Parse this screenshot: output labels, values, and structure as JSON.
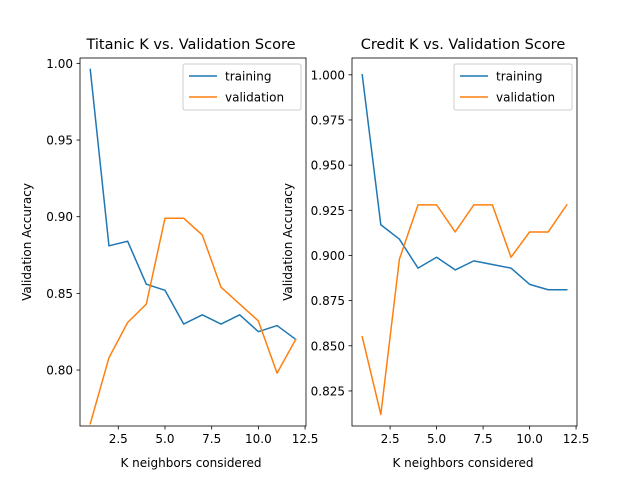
{
  "chart_data": [
    {
      "type": "line",
      "title": "Titanic K vs. Validation Score",
      "xlabel": "K neighbors considered",
      "ylabel": "Validation Accuracy",
      "xlim": [
        0.45,
        12.55
      ],
      "ylim": [
        0.7635,
        1.0035
      ],
      "xticks": [
        2.5,
        5.0,
        7.5,
        10.0,
        12.5
      ],
      "xtick_labels": [
        "2.5",
        "5.0",
        "7.5",
        "10.0",
        "12.5"
      ],
      "yticks": [
        0.8,
        0.85,
        0.9,
        0.95,
        1.0
      ],
      "ytick_labels": [
        "0.80",
        "0.85",
        "0.90",
        "0.95",
        "1.00"
      ],
      "legend_position": "top-right",
      "grid": false,
      "x": [
        1,
        2,
        3,
        4,
        5,
        6,
        7,
        8,
        9,
        10,
        11,
        12
      ],
      "series": [
        {
          "name": "training",
          "color": "#1f77b4",
          "values": [
            0.996,
            0.881,
            0.884,
            0.856,
            0.852,
            0.83,
            0.836,
            0.83,
            0.836,
            0.825,
            0.829,
            0.82
          ]
        },
        {
          "name": "validation",
          "color": "#ff7f0e",
          "values": [
            0.765,
            0.808,
            0.831,
            0.843,
            0.899,
            0.899,
            0.888,
            0.854,
            0.843,
            0.832,
            0.798,
            0.82
          ]
        }
      ]
    },
    {
      "type": "line",
      "title": "Credit K vs. Validation Score",
      "xlabel": "K neighbors considered",
      "ylabel": "Validation Accuracy",
      "xlim": [
        0.45,
        12.55
      ],
      "ylim": [
        0.8056,
        1.0093
      ],
      "xticks": [
        2.5,
        5.0,
        7.5,
        10.0,
        12.5
      ],
      "xtick_labels": [
        "2.5",
        "5.0",
        "7.5",
        "10.0",
        "12.5"
      ],
      "yticks": [
        0.825,
        0.85,
        0.875,
        0.9,
        0.925,
        0.95,
        0.975,
        1.0
      ],
      "ytick_labels": [
        "0.825",
        "0.850",
        "0.875",
        "0.900",
        "0.925",
        "0.950",
        "0.975",
        "1.000"
      ],
      "legend_position": "top-right",
      "grid": false,
      "x": [
        1,
        2,
        3,
        4,
        5,
        6,
        7,
        8,
        9,
        10,
        11,
        12
      ],
      "series": [
        {
          "name": "training",
          "color": "#1f77b4",
          "values": [
            1.0,
            0.917,
            0.909,
            0.893,
            0.899,
            0.892,
            0.897,
            0.895,
            0.893,
            0.884,
            0.881,
            0.881
          ]
        },
        {
          "name": "validation",
          "color": "#ff7f0e",
          "values": [
            0.855,
            0.812,
            0.898,
            0.928,
            0.928,
            0.913,
            0.928,
            0.928,
            0.899,
            0.913,
            0.913,
            0.928
          ]
        }
      ]
    }
  ]
}
